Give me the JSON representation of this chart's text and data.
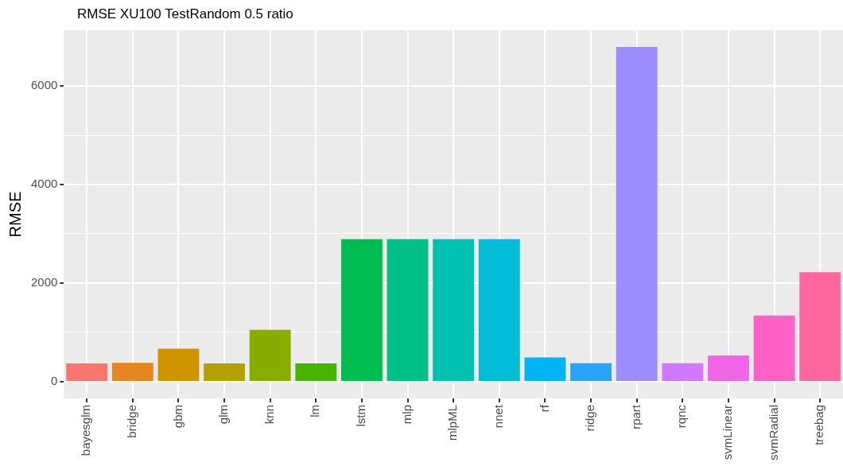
{
  "chart_data": {
    "type": "bar",
    "title": "RMSE XU100 TestRandom 0.5 ratio",
    "ylabel": "RMSE",
    "categories": [
      "bayesglm",
      "bridge",
      "gbm",
      "glm",
      "knn",
      "lm",
      "lstm",
      "mlp",
      "mlpML",
      "nnet",
      "rf",
      "ridge",
      "rpart",
      "rqnc",
      "svmLinear",
      "svmRadial",
      "treebag"
    ],
    "values": [
      370,
      380,
      670,
      370,
      1050,
      370,
      2890,
      2890,
      2890,
      2890,
      490,
      375,
      6790,
      375,
      530,
      1340,
      2220
    ],
    "colors": [
      "#f8766d",
      "#e7851e",
      "#d09400",
      "#b2a100",
      "#89ac00",
      "#45b500",
      "#00bc51",
      "#00c087",
      "#00c0b2",
      "#00bcd6",
      "#00b3f2",
      "#29a3ff",
      "#9c8dff",
      "#d277ff",
      "#f166e8",
      "#ff61c7",
      "#ff689f"
    ],
    "ylim": [
      -340,
      7130
    ],
    "yticks": [
      0,
      {
        "value": 1000,
        "label": null
      },
      2000,
      {
        "value": 3000,
        "label": null
      },
      4000,
      {
        "value": 5000,
        "label": null
      },
      6000
    ],
    "grid": true,
    "legend": false
  }
}
